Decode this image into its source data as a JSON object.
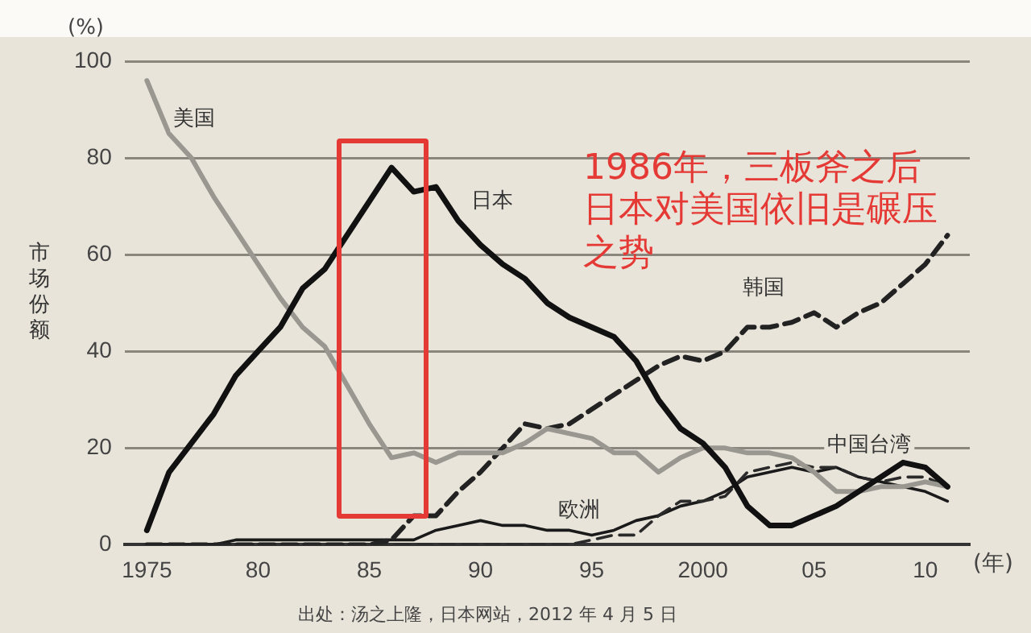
{
  "chart_data": {
    "type": "line",
    "ylabel": "市场份额",
    "xlabel": "(年)",
    "annotations": [
      "(%)",
      "1986年，三板斧之后日本对美国依旧是碾压之势",
      "出处：汤之上隆，日本网站，2012 年 4 月 5 日"
    ],
    "x": [
      1975,
      1976,
      1977,
      1978,
      1979,
      1980,
      1981,
      1982,
      1983,
      1984,
      1985,
      1986,
      1987,
      1988,
      1989,
      1990,
      1991,
      1992,
      1993,
      1994,
      1995,
      1996,
      1997,
      1998,
      1999,
      2000,
      2001,
      2002,
      2003,
      2004,
      2005,
      2006,
      2007,
      2008,
      2009,
      2010,
      2011
    ],
    "series": [
      {
        "name": "美国",
        "color": "#9a9791",
        "line_style": "solid",
        "values": [
          96,
          85,
          80,
          72,
          65,
          58,
          51,
          45,
          41,
          33,
          25,
          18,
          19,
          17,
          19,
          19,
          19,
          21,
          24,
          23,
          22,
          19,
          19,
          15,
          18,
          20,
          20,
          19,
          19,
          18,
          15,
          11,
          11,
          12,
          12,
          13,
          12
        ]
      },
      {
        "name": "日本",
        "color": "#111111",
        "line_style": "solid",
        "values": [
          3,
          15,
          21,
          27,
          35,
          40,
          45,
          53,
          57,
          64,
          71,
          78,
          73,
          74,
          67,
          62,
          58,
          55,
          50,
          47,
          45,
          43,
          38,
          30,
          24,
          21,
          16,
          8,
          4,
          4,
          6,
          8,
          11,
          14,
          17,
          16,
          12
        ]
      },
      {
        "name": "韩国",
        "color": "#222222",
        "line_style": "dashed",
        "values": [
          0,
          0,
          0,
          0,
          0,
          0,
          0,
          0,
          0,
          0,
          0,
          1,
          6,
          6,
          11,
          15,
          20,
          25,
          24,
          25,
          28,
          31,
          34,
          37,
          39,
          38,
          40,
          45,
          45,
          46,
          48,
          45,
          48,
          50,
          54,
          58,
          64
        ]
      },
      {
        "name": "中国台湾",
        "color": "#2a2a2a",
        "line_style": "dashed",
        "values": [
          0,
          0,
          0,
          0,
          0,
          0,
          0,
          0,
          0,
          0,
          0,
          0,
          0,
          0,
          0,
          0,
          0,
          0,
          0,
          0,
          1,
          2,
          2,
          6,
          9,
          9,
          10,
          15,
          16,
          17,
          16,
          16,
          14,
          13,
          14,
          14,
          12
        ]
      },
      {
        "name": "欧洲",
        "color": "#1a1a1a",
        "line_style": "solid",
        "values": [
          0,
          0,
          0,
          0,
          1,
          1,
          1,
          1,
          1,
          1,
          1,
          1,
          1,
          3,
          4,
          5,
          4,
          4,
          3,
          3,
          2,
          3,
          5,
          6,
          8,
          9,
          11,
          14,
          15,
          16,
          15,
          16,
          14,
          13,
          12,
          11,
          9
        ]
      }
    ],
    "xlim": [
      1974,
      2012
    ],
    "ylim": [
      0,
      100
    ],
    "xticks": [
      1975,
      {
        "value": 1980,
        "label": "80"
      },
      {
        "value": 1985,
        "label": "85"
      },
      {
        "value": 1990,
        "label": "90"
      },
      {
        "value": 1995,
        "label": "95"
      },
      2000,
      {
        "value": 2005,
        "label": "05"
      },
      {
        "value": 2010,
        "label": "10"
      }
    ],
    "yticks": [
      0,
      20,
      40,
      60,
      80,
      100
    ],
    "grid": "y",
    "legend": false,
    "marker": "none"
  }
}
